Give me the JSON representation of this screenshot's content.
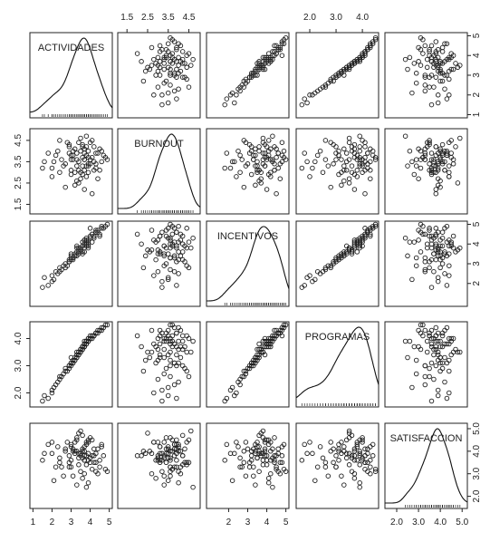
{
  "chart_data": {
    "type": "scatter",
    "title": "",
    "variables": [
      {
        "name": "ACTIVIDADES",
        "range": [
          1,
          5
        ],
        "ticks": [
          1,
          2,
          3,
          4,
          5
        ]
      },
      {
        "name": "BURNOUT",
        "range": [
          1.2,
          4.9
        ],
        "ticks": [
          1.5,
          2.5,
          3.5,
          4.5
        ]
      },
      {
        "name": "INCENTIVOS",
        "range": [
          1,
          5
        ],
        "ticks": [
          2,
          3,
          4,
          5
        ]
      },
      {
        "name": "PROGRAMAS",
        "range": [
          1.6,
          4.5
        ],
        "ticks": [
          2.0,
          3.0,
          4.0
        ]
      },
      {
        "name": "SATISFACCION",
        "range": [
          1.6,
          5.1
        ],
        "ticks": [
          2.0,
          3.0,
          4.0,
          5.0
        ]
      }
    ],
    "diagonal": "density",
    "tick_labels": {
      "top": {
        "1": [
          "1.5",
          "2.5",
          "3.5",
          "4.5"
        ],
        "3": [
          "2.0",
          "3.0",
          "4.0"
        ]
      },
      "right": {
        "0": [
          "1",
          "2",
          "3",
          "4",
          "5"
        ],
        "2": [
          "2",
          "3",
          "4",
          "5"
        ],
        "4": [
          "2.0",
          "3.0",
          "4.0",
          "5.0"
        ]
      },
      "bottom": {
        "0": [
          "1",
          "2",
          "3",
          "4",
          "5"
        ],
        "2": [
          "2",
          "3",
          "4",
          "5"
        ],
        "4": [
          "2.0",
          "3.0",
          "4.0",
          "5.0"
        ]
      },
      "left": {
        "1": [
          "1.5",
          "2.5",
          "3.5",
          "4.5"
        ],
        "3": [
          "2.0",
          "3.0",
          "4.0"
        ]
      }
    },
    "observations": [
      [
        3.7,
        3.6,
        4.2,
        3.9,
        4.0
      ],
      [
        4.0,
        4.4,
        4.8,
        4.1,
        3.5
      ],
      [
        3.3,
        3.6,
        3.8,
        3.5,
        4.6
      ],
      [
        2.9,
        4.2,
        3.2,
        3.0,
        3.8
      ],
      [
        3.6,
        2.9,
        4.1,
        3.7,
        2.8
      ],
      [
        4.3,
        3.9,
        4.6,
        4.2,
        3.9
      ],
      [
        3.0,
        3.1,
        3.5,
        3.3,
        4.2
      ],
      [
        2.4,
        4.5,
        2.8,
        2.6,
        3.5
      ],
      [
        3.9,
        3.3,
        3.9,
        4.0,
        4.4
      ],
      [
        3.5,
        4.0,
        3.6,
        3.6,
        3.1
      ],
      [
        1.6,
        3.5,
        2.3,
        1.9,
        3.9
      ],
      [
        4.5,
        3.1,
        4.4,
        4.3,
        3.6
      ],
      [
        3.8,
        4.7,
        4.3,
        3.9,
        2.4
      ],
      [
        2.7,
        3.4,
        3.0,
        2.9,
        4.1
      ],
      [
        3.4,
        2.5,
        3.7,
        3.5,
        4.8
      ],
      [
        4.1,
        3.7,
        4.5,
        4.1,
        3.2
      ],
      [
        3.2,
        4.1,
        3.4,
        3.3,
        4.0
      ],
      [
        2.2,
        3.8,
        2.6,
        2.3,
        3.3
      ],
      [
        3.7,
        2.2,
        4.0,
        3.7,
        3.8
      ],
      [
        4.6,
        4.0,
        4.9,
        4.4,
        4.3
      ],
      [
        3.1,
        3.6,
        3.3,
        3.2,
        2.9
      ],
      [
        3.9,
        3.0,
        4.2,
        4.0,
        3.6
      ],
      [
        2.8,
        4.4,
        2.9,
        2.8,
        4.4
      ],
      [
        3.6,
        3.3,
        3.5,
        3.6,
        3.7
      ],
      [
        4.4,
        2.7,
        4.7,
        4.3,
        3.0
      ],
      [
        3.3,
        3.9,
        3.9,
        3.4,
        4.5
      ],
      [
        2.0,
        3.2,
        2.1,
        2.1,
        3.9
      ],
      [
        3.8,
        4.2,
        4.0,
        3.9,
        3.4
      ],
      [
        4.2,
        3.5,
        4.3,
        4.1,
        4.1
      ],
      [
        3.0,
        2.9,
        3.2,
        3.1,
        3.6
      ],
      [
        3.5,
        4.6,
        3.8,
        3.5,
        4.9
      ],
      [
        4.7,
        3.8,
        4.8,
        4.4,
        3.8
      ],
      [
        2.5,
        3.6,
        2.7,
        2.6,
        3.3
      ],
      [
        3.7,
        3.1,
        3.6,
        3.8,
        4.2
      ],
      [
        3.9,
        4.0,
        4.1,
        3.9,
        2.6
      ],
      [
        3.2,
        2.4,
        3.4,
        3.2,
        3.9
      ],
      [
        4.0,
        3.4,
        4.4,
        4.0,
        4.6
      ],
      [
        2.9,
        4.3,
        3.1,
        2.9,
        3.5
      ],
      [
        3.6,
        3.7,
        3.9,
        3.7,
        4.0
      ],
      [
        4.3,
        3.2,
        4.6,
        4.2,
        3.1
      ],
      [
        1.8,
        3.9,
        1.9,
        1.8,
        4.3
      ],
      [
        3.4,
        3.5,
        3.5,
        3.4,
        3.7
      ],
      [
        3.8,
        2.8,
        4.2,
        3.8,
        4.4
      ],
      [
        4.5,
        4.1,
        4.5,
        4.3,
        3.3
      ],
      [
        3.1,
        3.8,
        3.3,
        3.1,
        4.1
      ],
      [
        3.5,
        3.0,
        3.7,
        3.6,
        3.8
      ],
      [
        2.6,
        3.3,
        2.9,
        2.7,
        2.9
      ],
      [
        4.1,
        4.5,
        4.1,
        4.0,
        4.5
      ],
      [
        3.7,
        3.6,
        4.0,
        3.8,
        3.6
      ],
      [
        3.3,
        2.6,
        3.6,
        3.3,
        4.0
      ],
      [
        4.8,
        3.7,
        4.9,
        4.5,
        3.2
      ],
      [
        2.3,
        4.0,
        2.5,
        2.4,
        4.2
      ],
      [
        3.9,
        3.4,
        3.8,
        3.9,
        3.9
      ],
      [
        3.6,
        4.2,
        3.6,
        3.6,
        4.7
      ],
      [
        4.2,
        3.1,
        4.4,
        4.1,
        3.5
      ],
      [
        2.1,
        3.5,
        2.2,
        2.2,
        2.7
      ],
      [
        3.0,
        3.8,
        3.4,
        3.1,
        4.3
      ],
      [
        3.8,
        3.3,
        3.9,
        3.9,
        3.8
      ],
      [
        4.4,
        3.9,
        4.6,
        4.2,
        4.1
      ],
      [
        3.4,
        4.4,
        3.8,
        3.5,
        3.4
      ],
      [
        2.7,
        2.3,
        2.8,
        2.8,
        4.0
      ],
      [
        4.0,
        3.6,
        4.3,
        4.0,
        3.7
      ],
      [
        3.2,
        3.0,
        3.5,
        3.2,
        4.4
      ],
      [
        3.7,
        4.1,
        4.2,
        3.7,
        3.0
      ],
      [
        1.5,
        3.2,
        1.8,
        1.7,
        3.6
      ],
      [
        4.6,
        3.5,
        4.8,
        4.3,
        4.2
      ],
      [
        3.5,
        2.7,
        3.7,
        3.5,
        3.9
      ],
      [
        2.9,
        3.9,
        3.1,
        3.0,
        3.3
      ],
      [
        3.9,
        3.7,
        4.0,
        3.9,
        4.5
      ],
      [
        3.3,
        3.3,
        3.4,
        3.3,
        2.5
      ],
      [
        4.1,
        2.0,
        4.5,
        4.1,
        3.8
      ],
      [
        3.6,
        4.3,
        3.9,
        3.7,
        4.1
      ],
      [
        2.4,
        3.0,
        2.6,
        2.5,
        3.7
      ],
      [
        3.8,
        3.8,
        4.1,
        3.8,
        4.3
      ],
      [
        4.3,
        3.4,
        4.7,
        4.2,
        3.5
      ],
      [
        3.1,
        4.0,
        3.2,
        3.1,
        4.0
      ],
      [
        3.4,
        3.1,
        3.6,
        3.4,
        3.9
      ],
      [
        4.9,
        3.6,
        5.0,
        4.5,
        3.1
      ],
      [
        2.0,
        2.8,
        2.4,
        2.0,
        4.4
      ],
      [
        3.7,
        3.9,
        3.8,
        3.7,
        3.6
      ],
      [
        3.0,
        3.6,
        3.3,
        3.0,
        3.3
      ],
      [
        4.2,
        4.2,
        4.4,
        4.1,
        3.8
      ]
    ]
  }
}
